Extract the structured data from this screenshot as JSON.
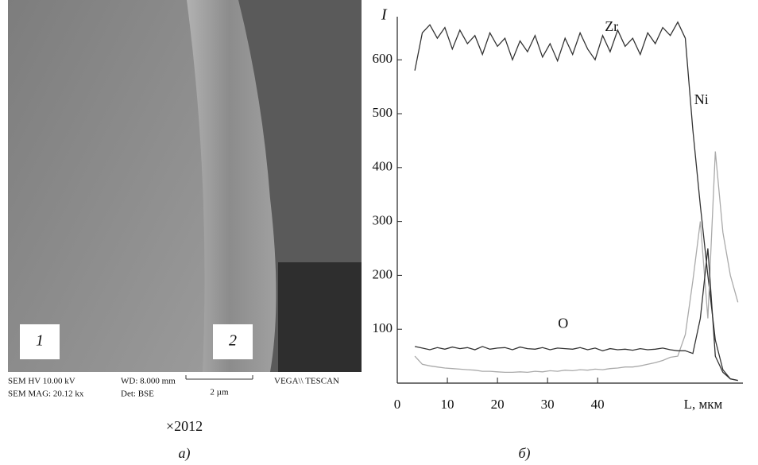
{
  "figure": {
    "sem": {
      "label_1": "1",
      "label_2": "2",
      "hv": "SEM HV 10.00 kV",
      "wd": "WD: 8.000 mm",
      "vendor": "VEGA\\\\ TESCAN",
      "mag": "SEM MAG: 20.12 kx",
      "det": "Det: BSE",
      "scale": "2 µm"
    },
    "magnification": "×2012",
    "caption_a": "а)",
    "caption_b": "б)"
  },
  "chart_data": {
    "type": "line",
    "ylabel": "I",
    "xlabel": "L, мкм",
    "x": [
      3.5,
      5,
      6.5,
      8,
      9.5,
      11,
      12.5,
      14,
      15.5,
      17,
      18.5,
      20,
      21.5,
      23,
      24.5,
      26,
      27.5,
      29,
      30.5,
      32,
      33.5,
      35,
      36.5,
      38,
      39.5,
      41,
      42.5,
      44,
      45.5,
      47,
      48.5,
      50,
      51.5,
      53,
      54.5,
      56,
      57.5,
      59,
      60.5,
      62,
      63.5,
      65,
      66.5,
      68
    ],
    "series": [
      {
        "name": "Zr",
        "color": "#333333",
        "values": [
          580,
          650,
          665,
          640,
          660,
          620,
          655,
          630,
          645,
          610,
          650,
          625,
          640,
          600,
          635,
          615,
          645,
          605,
          630,
          598,
          640,
          610,
          650,
          620,
          600,
          645,
          615,
          655,
          625,
          640,
          610,
          650,
          630,
          660,
          645,
          670,
          640,
          470,
          330,
          200,
          80,
          25,
          8,
          5
        ]
      },
      {
        "name": "Ni",
        "color": "#aaaaaa",
        "values": [
          50,
          35,
          32,
          30,
          28,
          27,
          26,
          25,
          24,
          22,
          22,
          21,
          20,
          20,
          21,
          20,
          22,
          21,
          23,
          22,
          24,
          23,
          25,
          24,
          26,
          25,
          27,
          28,
          30,
          30,
          32,
          35,
          38,
          42,
          48,
          50,
          90,
          190,
          300,
          120,
          430,
          280,
          200,
          150
        ]
      },
      {
        "name": "O",
        "color": "#333333",
        "values": [
          68,
          65,
          62,
          66,
          63,
          67,
          64,
          66,
          62,
          68,
          63,
          65,
          66,
          62,
          67,
          64,
          63,
          66,
          62,
          65,
          64,
          63,
          66,
          62,
          65,
          60,
          64,
          62,
          63,
          61,
          64,
          62,
          63,
          65,
          62,
          60,
          60,
          55,
          120,
          250,
          50,
          20,
          8,
          5
        ]
      }
    ],
    "xlim": [
      0,
      69
    ],
    "ylim": [
      0,
      680
    ],
    "xticks": [
      0,
      10,
      20,
      30,
      40
    ],
    "yticks": [
      100,
      200,
      300,
      400,
      500,
      600
    ]
  }
}
